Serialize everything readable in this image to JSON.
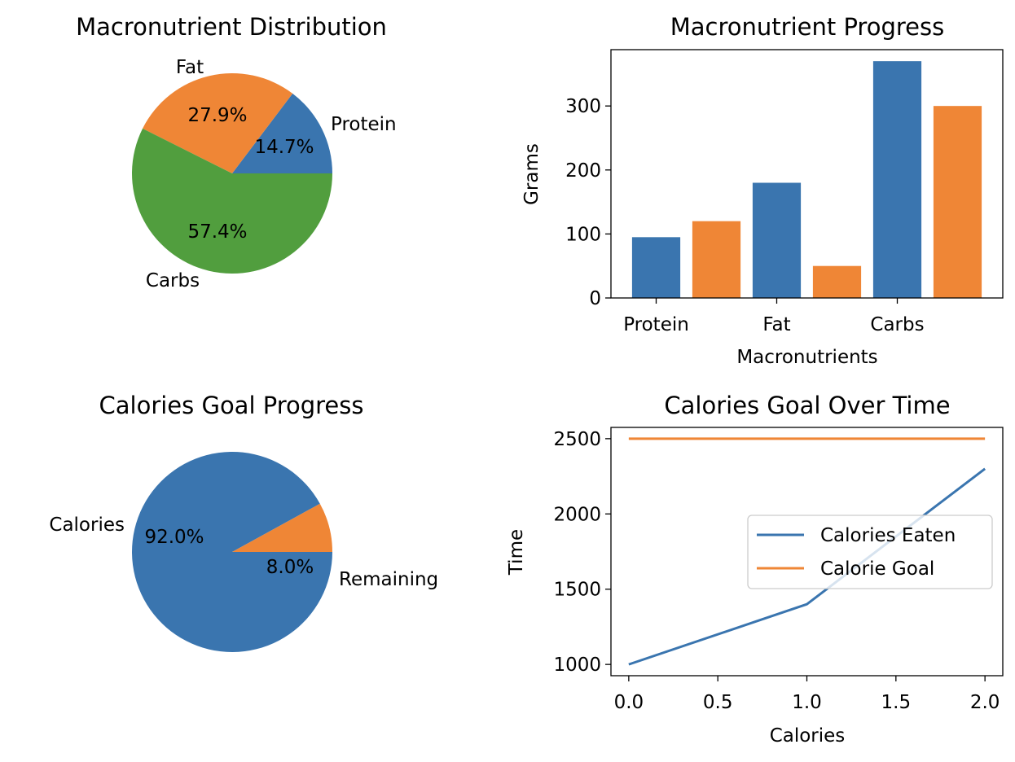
{
  "chart_data": [
    {
      "type": "pie",
      "title": "Macronutrient Distribution",
      "labels": [
        "Protein",
        "Fat",
        "Carbs"
      ],
      "values": [
        14.7,
        27.9,
        57.4
      ],
      "percent_labels": [
        "14.7%",
        "27.9%",
        "57.4%"
      ],
      "colors": [
        "#3a75af",
        "#ef8636",
        "#519e3e"
      ],
      "start_angle_deg": 0,
      "direction": "counterclockwise"
    },
    {
      "type": "bar",
      "title": "Macronutrient Progress",
      "xlabel": "Macronutrients",
      "ylabel": "Grams",
      "categories": [
        "Protein",
        "Fat",
        "Carbs"
      ],
      "bars": [
        {
          "x": 0.0,
          "value": 95,
          "color": "#3a75af"
        },
        {
          "x": 0.5,
          "value": 120,
          "color": "#ef8636"
        },
        {
          "x": 1.0,
          "value": 180,
          "color": "#3a75af"
        },
        {
          "x": 1.5,
          "value": 50,
          "color": "#ef8636"
        },
        {
          "x": 2.0,
          "value": 370,
          "color": "#3a75af"
        },
        {
          "x": 2.5,
          "value": 300,
          "color": "#ef8636"
        }
      ],
      "category_ticks": [
        0,
        1,
        2
      ],
      "ylim": [
        0,
        388
      ],
      "yticks": [
        0,
        100,
        200,
        300
      ],
      "grid": false
    },
    {
      "type": "pie",
      "title": "Calories Goal Progress",
      "labels": [
        "Calories",
        "Remaining"
      ],
      "values": [
        92.0,
        8.0
      ],
      "percent_labels": [
        "92.0%",
        "8.0%"
      ],
      "colors": [
        "#3a75af",
        "#ef8636"
      ],
      "start_angle_deg": 0,
      "direction": "clockwise"
    },
    {
      "type": "line",
      "title": "Calories Goal Over Time",
      "xlabel": "Calories",
      "ylabel": "Time",
      "x": [
        0,
        1,
        2
      ],
      "series": [
        {
          "name": "Calories Eaten",
          "values": [
            1000,
            1400,
            2300
          ],
          "color": "#3a75af"
        },
        {
          "name": "Calorie Goal",
          "values": [
            2500,
            2500,
            2500
          ],
          "color": "#ef8636"
        }
      ],
      "xlim": [
        -0.1,
        2.1
      ],
      "ylim": [
        925,
        2575
      ],
      "xticks": [
        0.0,
        0.5,
        1.0,
        1.5,
        2.0
      ],
      "xtick_labels": [
        "0.0",
        "0.5",
        "1.0",
        "1.5",
        "2.0"
      ],
      "yticks": [
        1000,
        1500,
        2000,
        2500
      ],
      "legend_position": "center-right",
      "grid": false
    }
  ]
}
